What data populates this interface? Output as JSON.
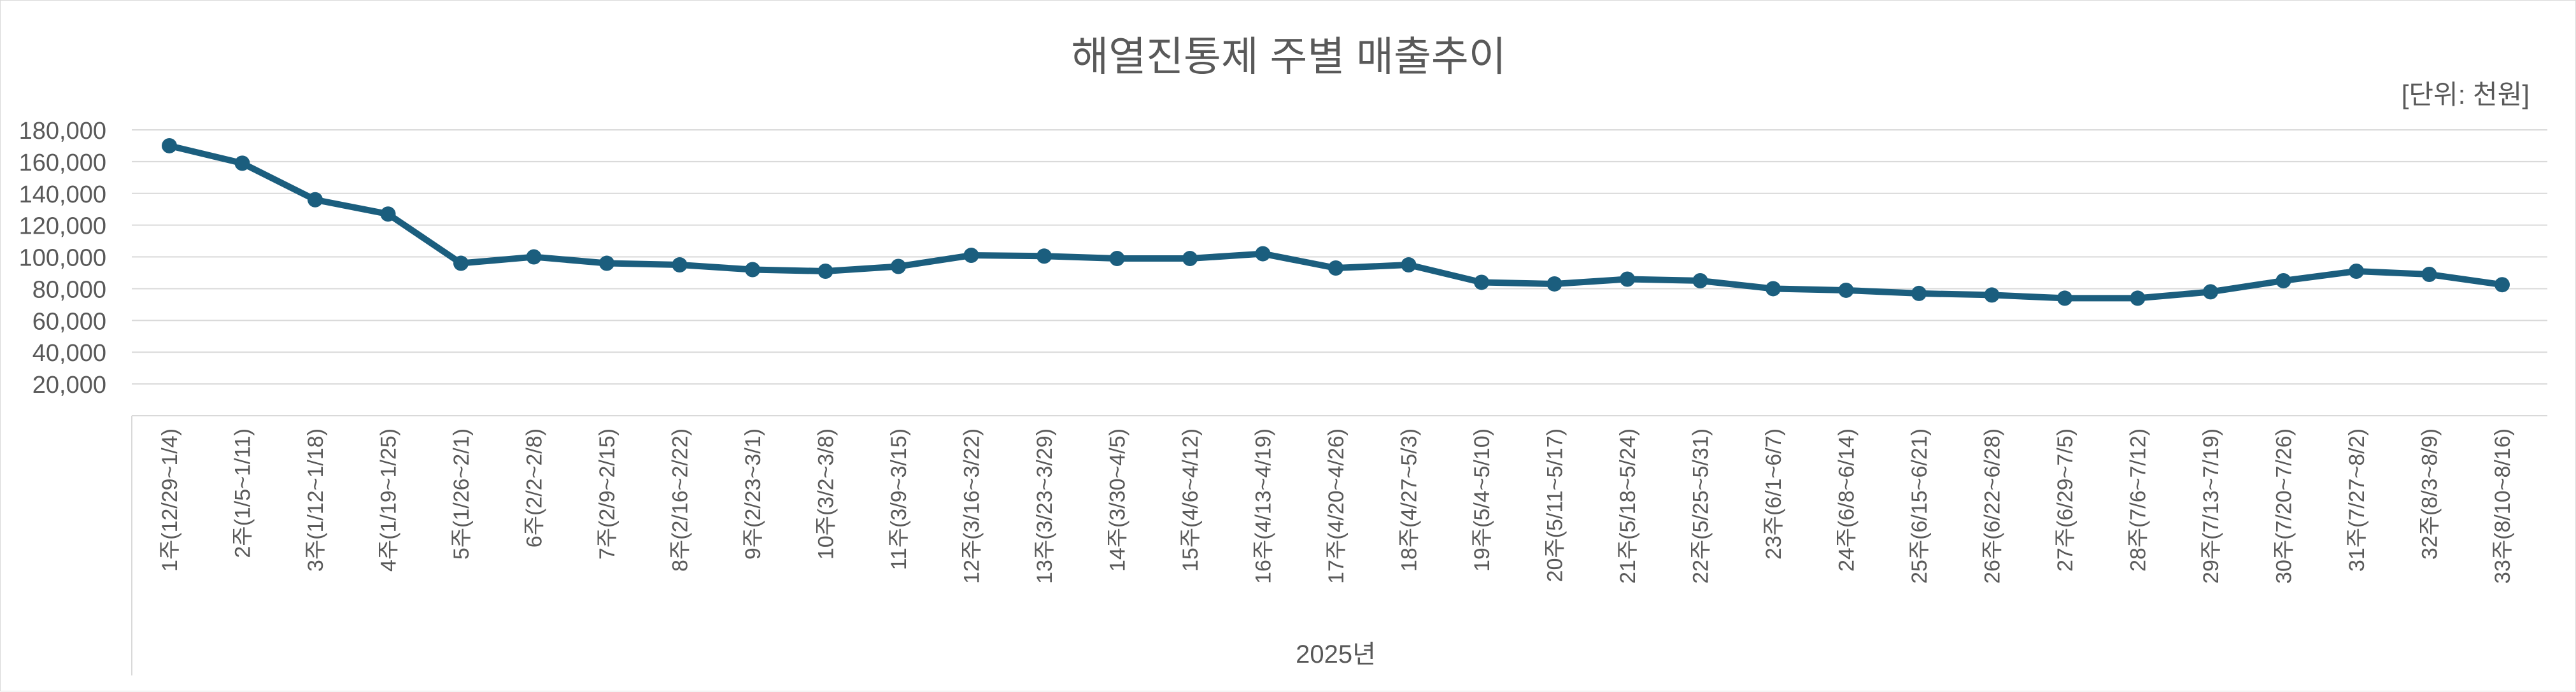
{
  "chart_data": {
    "type": "line",
    "title": "해열진통제 주별 매출추이",
    "unit_label": "[단위: 천원]",
    "xlabel": "2025년",
    "ylabel": "",
    "ylim": [
      0,
      180000
    ],
    "yticks": [
      "20,000",
      "40,000",
      "60,000",
      "80,000",
      "100,000",
      "120,000",
      "140,000",
      "160,000",
      "180,000"
    ],
    "ytick_values": [
      20000,
      40000,
      60000,
      80000,
      100000,
      120000,
      140000,
      160000,
      180000
    ],
    "grid": true,
    "legend": "none",
    "line_color": "#1b5e7e",
    "categories": [
      "1주(12/29~1/4)",
      "2주(1/5~1/11)",
      "3주(1/12~1/18)",
      "4주(1/19~1/25)",
      "5주(1/26~2/1)",
      "6주(2/2~2/8)",
      "7주(2/9~2/15)",
      "8주(2/16~2/22)",
      "9주(2/23~3/1)",
      "10주(3/2~3/8)",
      "11주(3/9~3/15)",
      "12주(3/16~3/22)",
      "13주(3/23~3/29)",
      "14주(3/30~4/5)",
      "15주(4/6~4/12)",
      "16주(4/13~4/19)",
      "17주(4/20~4/26)",
      "18주(4/27~5/3)",
      "19주(5/4~5/10)",
      "20주(5/11~5/17)",
      "21주(5/18~5/24)",
      "22주(5/25~5/31)",
      "23주(6/1~6/7)",
      "24주(6/8~6/14)",
      "25주(6/15~6/21)",
      "26주(6/22~6/28)",
      "27주(6/29~7/5)",
      "28주(7/6~7/12)",
      "29주(7/13~7/19)",
      "30주(7/20~7/26)",
      "31주(7/27~8/2)",
      "32주(8/3~8/9)",
      "33주(8/10~8/16)"
    ],
    "values": [
      170000,
      159000,
      136000,
      127000,
      96000,
      100000,
      96000,
      95000,
      92000,
      91000,
      94000,
      101000,
      100500,
      99000,
      99000,
      102000,
      93000,
      95000,
      84000,
      83000,
      86000,
      85000,
      80000,
      79000,
      77000,
      76000,
      74000,
      74000,
      78000,
      85000,
      91000,
      89000,
      82500
    ]
  }
}
